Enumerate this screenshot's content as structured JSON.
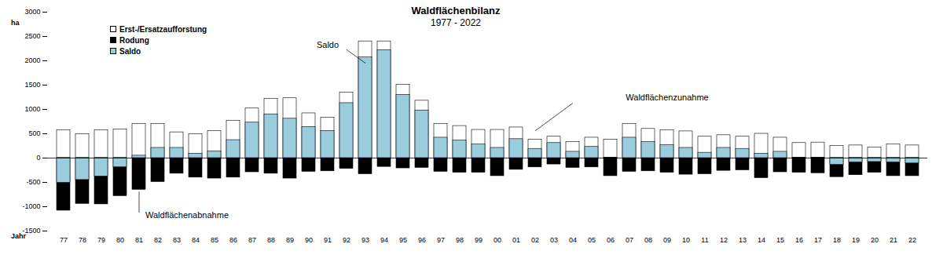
{
  "chart_data": {
    "type": "bar",
    "title": "Waldflächenbilanz",
    "subtitle": "1977 - 2022",
    "x_label": "Jahr",
    "y_label": "ha",
    "categories": [
      "77",
      "78",
      "79",
      "80",
      "81",
      "82",
      "83",
      "84",
      "85",
      "86",
      "87",
      "88",
      "89",
      "90",
      "91",
      "92",
      "93",
      "94",
      "95",
      "96",
      "97",
      "98",
      "99",
      "00",
      "01",
      "02",
      "03",
      "04",
      "05",
      "06",
      "07",
      "08",
      "09",
      "10",
      "11",
      "12",
      "13",
      "14",
      "15",
      "16",
      "17",
      "18",
      "19",
      "20",
      "21",
      "22"
    ],
    "series": [
      {
        "name": "Erst-/Ersatzaufforstung",
        "color": "#ffffff",
        "values": [
          570,
          490,
          570,
          590,
          700,
          700,
          530,
          490,
          560,
          770,
          1020,
          1220,
          1230,
          920,
          830,
          1350,
          2400,
          2400,
          1510,
          1180,
          700,
          660,
          580,
          580,
          630,
          380,
          440,
          330,
          420,
          380,
          700,
          600,
          570,
          550,
          440,
          470,
          440,
          500,
          420,
          310,
          320,
          250,
          260,
          220,
          280,
          260
        ]
      },
      {
        "name": "Rodung",
        "color": "#000000",
        "values": [
          -1080,
          -940,
          -950,
          -780,
          -650,
          -490,
          -320,
          -400,
          -420,
          -400,
          -290,
          -320,
          -420,
          -280,
          -270,
          -220,
          -330,
          -180,
          -210,
          -200,
          -280,
          -300,
          -300,
          -370,
          -240,
          -190,
          -130,
          -200,
          -190,
          -370,
          -280,
          -270,
          -300,
          -340,
          -330,
          -260,
          -250,
          -410,
          -290,
          -300,
          -310,
          -390,
          -350,
          -300,
          -370,
          -370
        ]
      },
      {
        "name": "Saldo",
        "color": "#99ccdd",
        "values": [
          -510,
          -450,
          -380,
          -190,
          50,
          210,
          210,
          90,
          140,
          370,
          730,
          900,
          810,
          640,
          560,
          1130,
          2070,
          2220,
          1300,
          980,
          420,
          360,
          280,
          210,
          390,
          190,
          310,
          130,
          230,
          10,
          420,
          330,
          270,
          210,
          110,
          210,
          190,
          90,
          130,
          10,
          10,
          -140,
          -90,
          -80,
          -90,
          -110
        ]
      }
    ],
    "ylim": [
      -1500,
      3000
    ],
    "yticks": [
      -1500,
      -1000,
      -500,
      0,
      500,
      1000,
      1500,
      2000,
      2500,
      3000
    ],
    "grid": false,
    "stacked": false,
    "legend": "top-left",
    "annotations": [
      "Saldo",
      "Waldflächenzunahme",
      "Waldflächenabnahme"
    ]
  }
}
